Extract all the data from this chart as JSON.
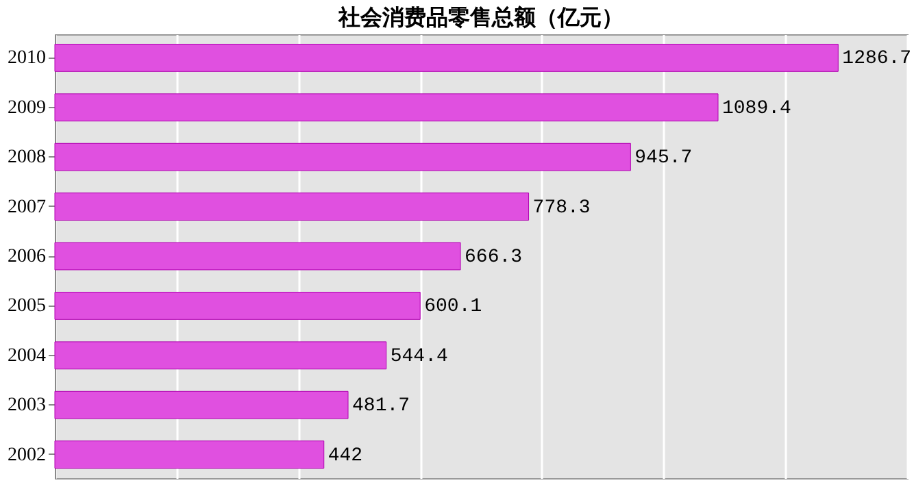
{
  "chart_data": {
    "type": "bar",
    "orientation": "horizontal",
    "title": "社会消费品零售总额（亿元）",
    "categories": [
      "2010",
      "2009",
      "2008",
      "2007",
      "2006",
      "2005",
      "2004",
      "2003",
      "2002"
    ],
    "values": [
      1286.7,
      1089.4,
      945.7,
      778.3,
      666.3,
      600.1,
      544.4,
      481.7,
      442
    ],
    "color": "#e050e0",
    "data_labels": true,
    "xlim": [
      0,
      1400
    ],
    "xticks": [
      {
        "value": 0,
        "label": null
      },
      {
        "value": 200,
        "label": null
      },
      {
        "value": 400,
        "label": null
      },
      {
        "value": 600,
        "label": null
      },
      {
        "value": 800,
        "label": null
      },
      {
        "value": 1000,
        "label": null
      },
      {
        "value": 1200,
        "label": null
      },
      {
        "value": 1400,
        "label": null
      }
    ],
    "grid": "x",
    "tick_labels": "y"
  }
}
